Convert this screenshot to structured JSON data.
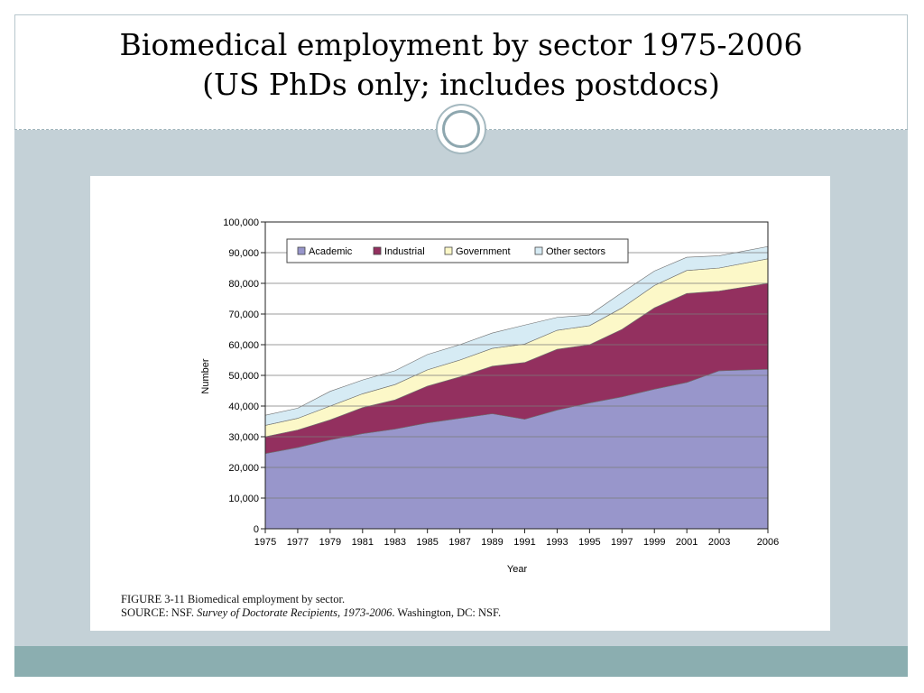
{
  "slide": {
    "title_line1": "Biomedical employment by sector 1975-2006",
    "title_line2": "(US PhDs only; includes postdocs)"
  },
  "figure": {
    "caption_line1": "FIGURE 3-11  Biomedical employment by sector.",
    "source_prefix": "SOURCE: NSF. ",
    "source_title": "Survey of Doctorate Recipients, 1973-2006",
    "source_suffix": ". Washington, DC: NSF."
  },
  "colors": {
    "academic": "#9896cb",
    "industrial": "#93305f",
    "government": "#fcf8c8",
    "other": "#d6ebf4"
  },
  "chart_data": {
    "type": "area",
    "stacked": true,
    "xlabel": "Year",
    "ylabel": "Number",
    "ylim": [
      0,
      100000
    ],
    "yticks": [
      0,
      10000,
      20000,
      30000,
      40000,
      50000,
      60000,
      70000,
      80000,
      90000,
      100000
    ],
    "ytick_labels": [
      "0",
      "10,000",
      "20,000",
      "30,000",
      "40,000",
      "50,000",
      "60,000",
      "70,000",
      "80,000",
      "90,000",
      "100,000"
    ],
    "x": [
      1975,
      1977,
      1979,
      1981,
      1983,
      1985,
      1987,
      1989,
      1991,
      1993,
      1995,
      1997,
      1999,
      2001,
      2003,
      2006
    ],
    "grid": "horizontal",
    "legend": "top",
    "series": [
      {
        "name": "Academic",
        "values": [
          24500,
          26500,
          29000,
          31000,
          32500,
          34500,
          36000,
          37500,
          35700,
          38700,
          41000,
          43000,
          45500,
          47700,
          51500,
          52000
        ]
      },
      {
        "name": "Industrial",
        "values": [
          5500,
          5700,
          6500,
          8500,
          9500,
          12000,
          13500,
          15500,
          18500,
          19800,
          19000,
          22000,
          26500,
          29000,
          26000,
          28000
        ]
      },
      {
        "name": "Government",
        "values": [
          3700,
          3800,
          4500,
          4500,
          5000,
          5300,
          5500,
          5800,
          6000,
          6200,
          6200,
          7000,
          7300,
          7500,
          7500,
          8000
        ]
      },
      {
        "name": "Other sectors",
        "values": [
          3300,
          3300,
          4800,
          4500,
          4500,
          5000,
          5000,
          5000,
          6200,
          4200,
          3500,
          5000,
          4700,
          4300,
          4000,
          4000
        ]
      }
    ]
  }
}
